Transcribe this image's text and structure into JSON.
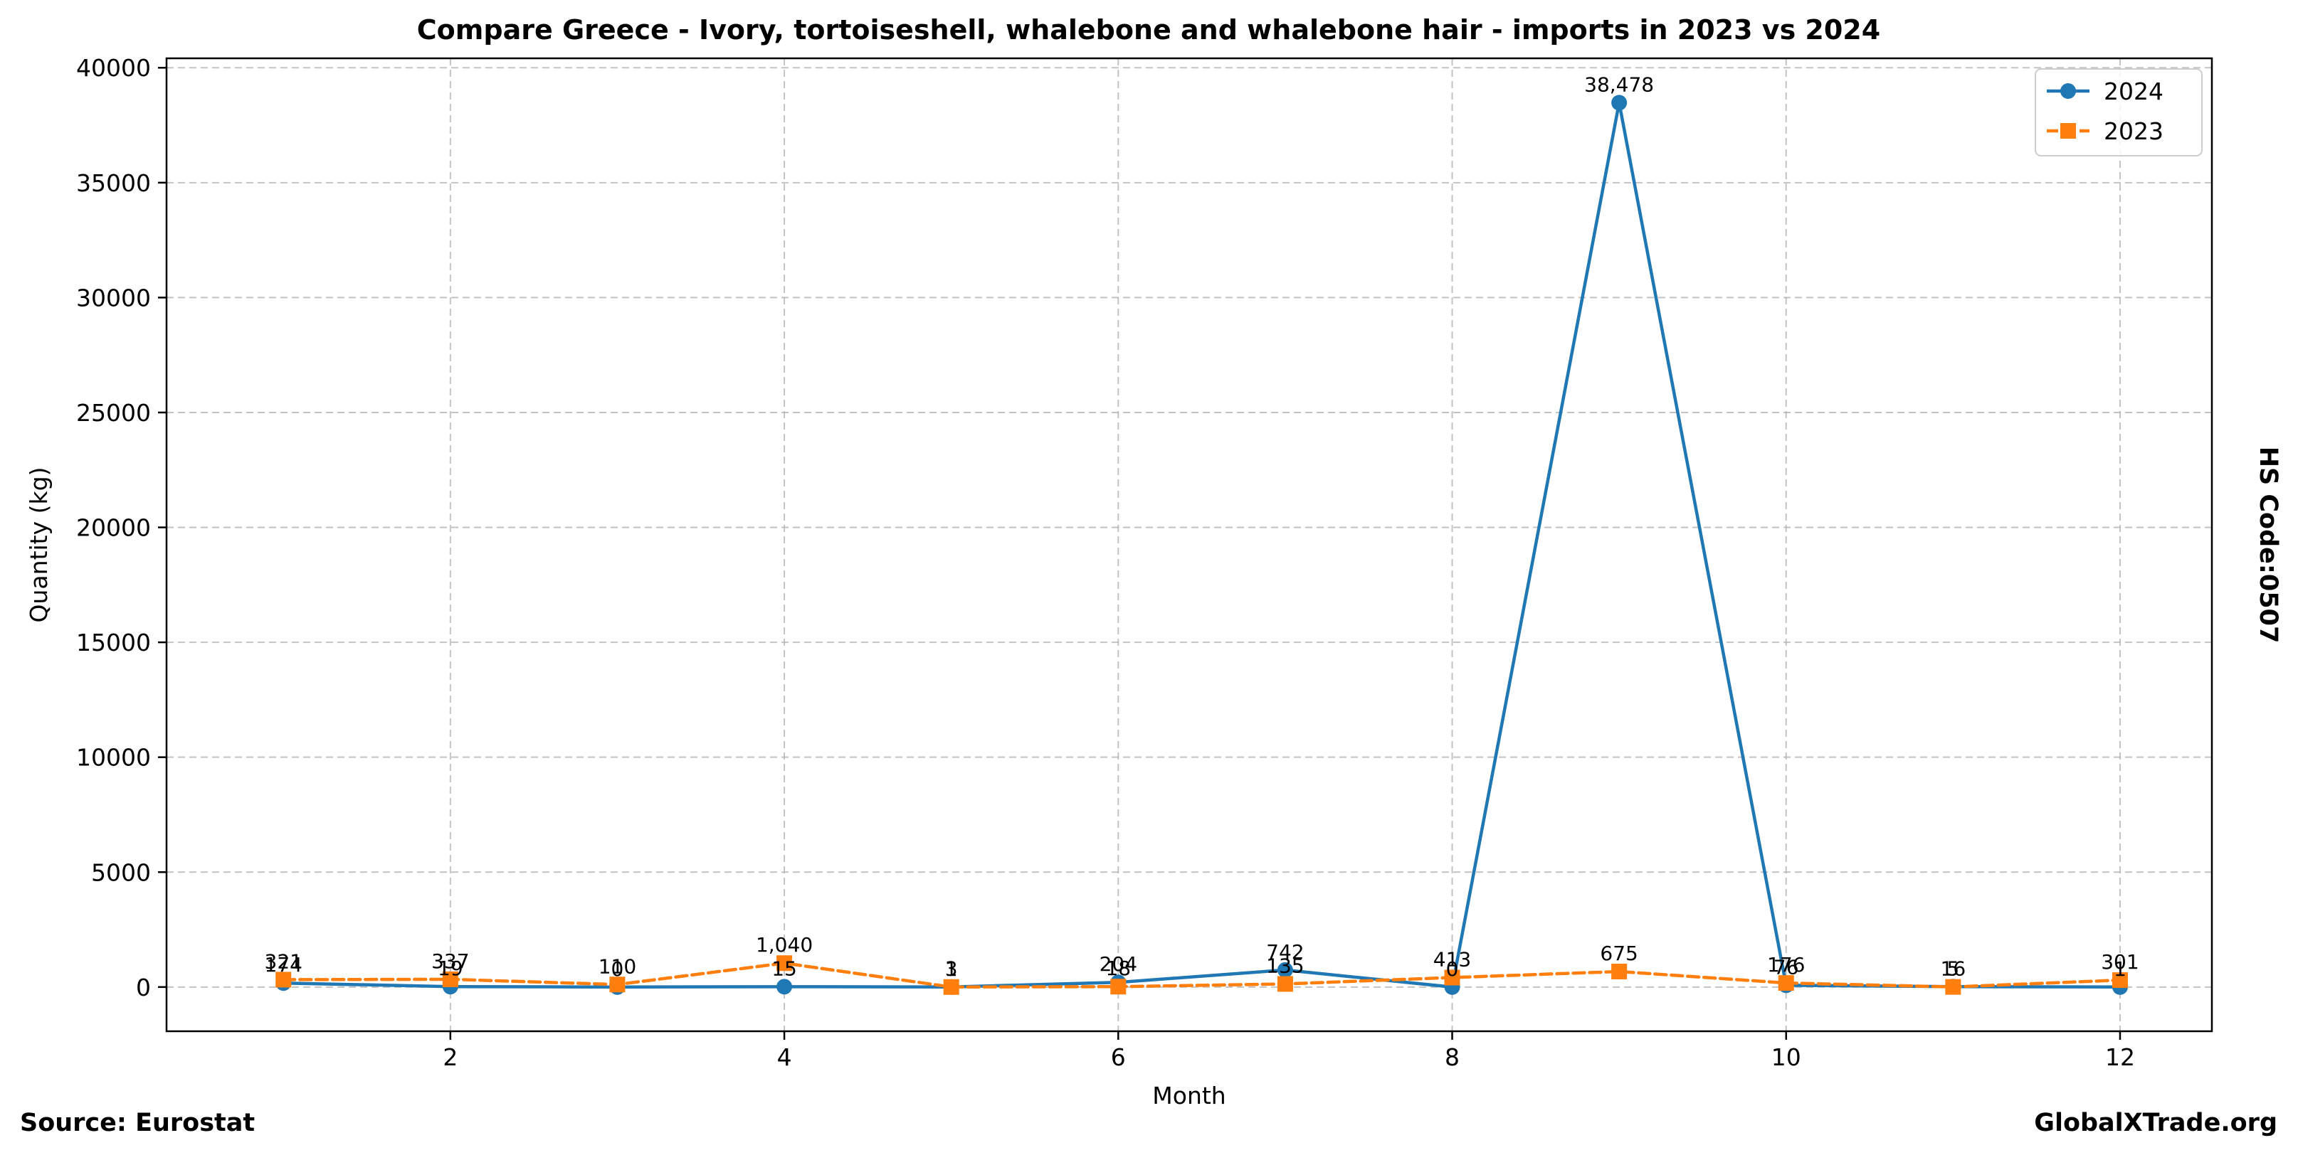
{
  "chart_data": {
    "type": "line",
    "title": "Compare Greece - Ivory, tortoiseshell, whalebone and whalebone hair - imports in 2023 vs 2024",
    "xlabel": "Month",
    "ylabel": "Quantity (kg)",
    "side_label": "HS Code:0507",
    "xlim": [
      0.3,
      12.55
    ],
    "ylim": [
      -1924,
      40410
    ],
    "x_ticks": [
      2,
      4,
      6,
      8,
      10,
      12
    ],
    "y_ticks": [
      0,
      5000,
      10000,
      15000,
      20000,
      25000,
      30000,
      35000,
      40000
    ],
    "grid": true,
    "legend_position": "top-right",
    "x": [
      1,
      2,
      3,
      4,
      5,
      6,
      7,
      8,
      9,
      10,
      11,
      12
    ],
    "series": [
      {
        "name": "2024",
        "color": "#1f77b4",
        "marker": "circle",
        "line_style": "solid",
        "values": [
          174,
          19,
          0,
          15,
          3,
          204,
          742,
          0,
          38478,
          76,
          16,
          1
        ],
        "labels": [
          "174",
          "19",
          "0",
          "15",
          "3",
          "204",
          "742",
          "0",
          "38,478",
          "76",
          "16",
          "1"
        ]
      },
      {
        "name": "2023",
        "color": "#ff7f0e",
        "marker": "square",
        "line_style": "dashed",
        "values": [
          321,
          337,
          110,
          1040,
          1,
          18,
          135,
          413,
          675,
          176,
          5,
          301
        ],
        "labels": [
          "321",
          "337",
          "110",
          "1,040",
          "1",
          "18",
          "135",
          "413",
          "675",
          "176",
          "5",
          "301"
        ]
      }
    ]
  },
  "footer": {
    "source": "Source: Eurostat",
    "brand": "GlobalXTrade.org"
  }
}
